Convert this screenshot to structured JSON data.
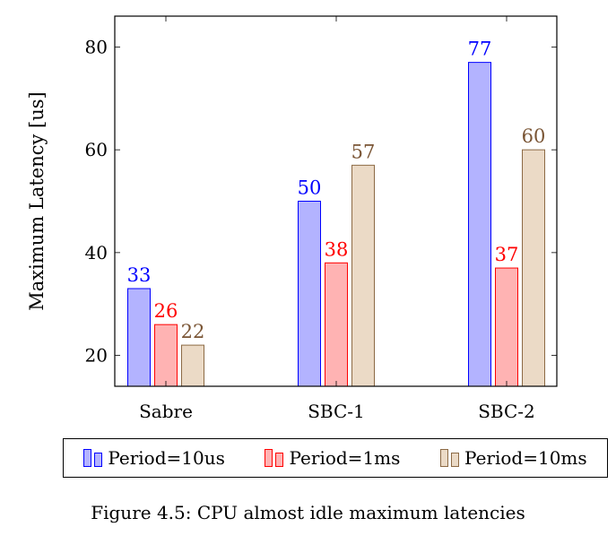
{
  "chart_data": {
    "type": "bar",
    "title": "",
    "xlabel": "",
    "ylabel": "Maximum Latency [us]",
    "categories": [
      "Sabre",
      "SBC-1",
      "SBC-2"
    ],
    "series": [
      {
        "name": "Period=10us",
        "values": [
          33,
          50,
          77
        ],
        "fill": "#b3b3ff",
        "stroke": "#0000ff",
        "label_color": "#0000ff"
      },
      {
        "name": "Period=1ms",
        "values": [
          26,
          38,
          37
        ],
        "fill": "#ffb3b3",
        "stroke": "#ff0000",
        "label_color": "#ff0000"
      },
      {
        "name": "Period=10ms",
        "values": [
          22,
          57,
          60
        ],
        "fill": "#ebdac6",
        "stroke": "#8c6a45",
        "label_color": "#7a5535"
      }
    ],
    "ylim": [
      14,
      86
    ],
    "yticks": [
      20,
      40,
      60,
      80
    ],
    "grid": false,
    "legend_position": "bottom"
  },
  "caption": "Figure 4.5: CPU almost idle maximum latencies"
}
